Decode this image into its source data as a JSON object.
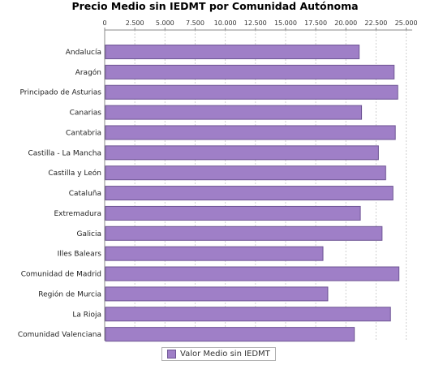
{
  "chart_data": {
    "type": "bar",
    "orientation": "horizontal",
    "title": "Precio Medio sin IEDMT por Comunidad Autónoma",
    "categories": [
      "Andalucía",
      "Aragón",
      "Principado de Asturias",
      "Canarias",
      "Cantabria",
      "Castilla - La Mancha",
      "Castilla y León",
      "Cataluña",
      "Extremadura",
      "Galicia",
      "Illes Balears",
      "Comunidad de Madrid",
      "Región de Murcia",
      "La Rioja",
      "Comunidad Valenciana"
    ],
    "series": [
      {
        "name": "Valor Medio sin IEDMT",
        "values": [
          21100,
          24000,
          24300,
          21300,
          24100,
          22700,
          23300,
          23900,
          21200,
          23000,
          18100,
          24400,
          18500,
          23700,
          20700
        ]
      }
    ],
    "xlim": [
      0,
      25500
    ],
    "xticks": [
      "0",
      "2.500",
      "5.000",
      "7.500",
      "10.000",
      "12.500",
      "15.000",
      "17.500",
      "20.000",
      "22.500",
      "25.000"
    ],
    "xtick_values": [
      0,
      2500,
      5000,
      7500,
      10000,
      12500,
      15000,
      17500,
      20000,
      22500,
      25000
    ],
    "axis_position": "top",
    "grid": true,
    "legend_position": "bottom",
    "colors": {
      "bar": "#9f7fc7",
      "bar_border": "#6e5594",
      "grid": "#d0d0d0",
      "axis": "#888888"
    }
  }
}
